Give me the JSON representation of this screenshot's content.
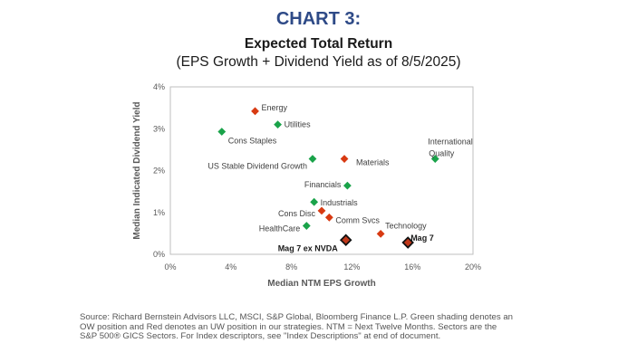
{
  "page": {
    "heading": "CHART 3:",
    "source": "Source: Richard Bernstein Advisors LLC, MSCI, S&P Global, Bloomberg Finance L.P.  Green shading denotes an OW position and Red denotes an UW position in our strategies.  NTM = Next Twelve Months. Sectors are the S&P 500® GICS Sectors. For Index descriptors, see \"Index Descriptions\" at end of document."
  },
  "chart_data": {
    "type": "scatter",
    "title": "Expected Total Return",
    "subtitle": "(EPS Growth + Dividend Yield as of 8/5/2025)",
    "xlabel": "Median NTM EPS Growth",
    "ylabel": "Median Indicated Dividend Yield",
    "xlim": [
      0,
      20
    ],
    "ylim": [
      0,
      4
    ],
    "xticks": [
      0,
      4,
      8,
      12,
      16,
      20
    ],
    "xtick_labels": [
      "0%",
      "4%",
      "8%",
      "12%",
      "16%",
      "20%"
    ],
    "yticks": [
      0,
      1,
      2,
      3,
      4
    ],
    "ytick_labels": [
      "0%",
      "1%",
      "2%",
      "3%",
      "4%"
    ],
    "colors": {
      "overweight": "#1aa34a",
      "underweight": "#d83a12",
      "mag": "#c0381a",
      "mag_outline": "#111111"
    },
    "points": [
      {
        "label": "Energy",
        "x": 5.6,
        "y": 3.42,
        "category": "underweight"
      },
      {
        "label": "Utilities",
        "x": 7.1,
        "y": 3.1,
        "category": "overweight"
      },
      {
        "label": "Cons Staples",
        "x": 3.4,
        "y": 2.93,
        "category": "overweight"
      },
      {
        "label": "US Stable Dividend Growth",
        "x": 9.4,
        "y": 2.28,
        "category": "overweight"
      },
      {
        "label": "Materials",
        "x": 11.5,
        "y": 2.28,
        "category": "underweight"
      },
      {
        "label": "International Quality",
        "x": 17.5,
        "y": 2.28,
        "category": "overweight"
      },
      {
        "label": "Financials",
        "x": 11.7,
        "y": 1.64,
        "category": "overweight"
      },
      {
        "label": "Industrials",
        "x": 9.5,
        "y": 1.25,
        "category": "overweight"
      },
      {
        "label": "Cons Disc",
        "x": 10.0,
        "y": 1.04,
        "category": "underweight"
      },
      {
        "label": "Comm Svcs",
        "x": 10.5,
        "y": 0.88,
        "category": "underweight"
      },
      {
        "label": "HealthCare",
        "x": 9.0,
        "y": 0.68,
        "category": "overweight"
      },
      {
        "label": "Technology",
        "x": 13.9,
        "y": 0.49,
        "category": "underweight"
      },
      {
        "label": "Mag 7 ex NVDA",
        "x": 11.6,
        "y": 0.34,
        "category": "mag"
      },
      {
        "label": "Mag 7",
        "x": 15.7,
        "y": 0.28,
        "category": "mag"
      }
    ]
  }
}
